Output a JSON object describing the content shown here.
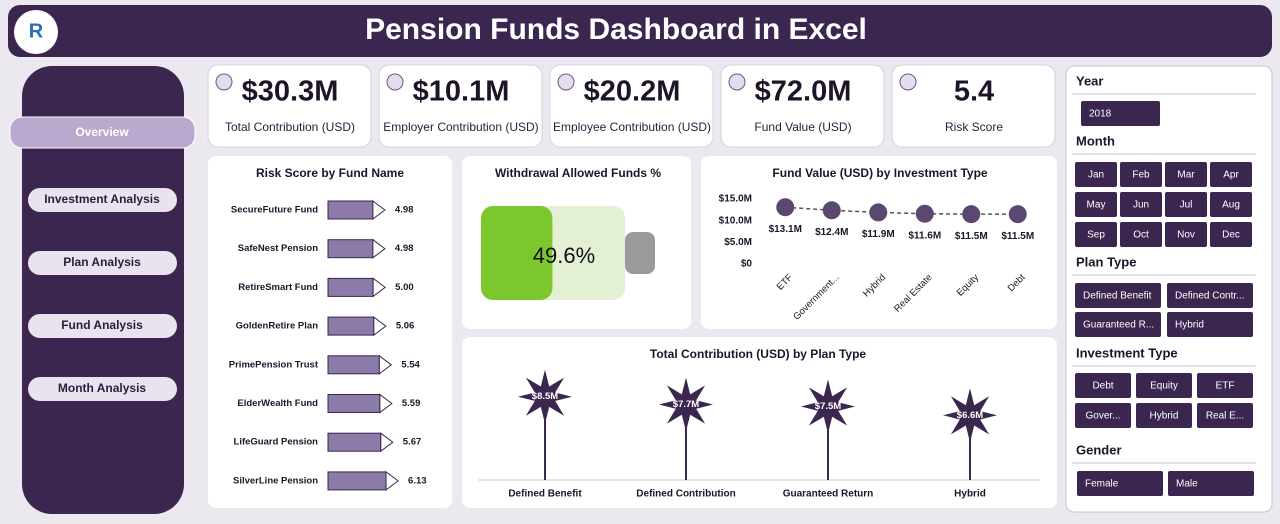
{
  "header": {
    "title": "Pension Funds Dashboard in Excel"
  },
  "nav": [
    "Overview",
    "Investment Analysis",
    "Plan Analysis",
    "Fund Analysis",
    "Month Analysis"
  ],
  "kpis": [
    {
      "value": "$30.3M",
      "label": "Total Contribution (USD)"
    },
    {
      "value": "$10.1M",
      "label": "Employer Contribution (USD)"
    },
    {
      "value": "$20.2M",
      "label": "Employee Contribution (USD)"
    },
    {
      "value": "$72.0M",
      "label": "Fund Value (USD)"
    },
    {
      "value": "5.4",
      "label": "Risk Score"
    }
  ],
  "slicers": [
    {
      "title": "Year",
      "items": [
        "2018"
      ]
    },
    {
      "title": "Month",
      "items": [
        "Jan",
        "Feb",
        "Mar",
        "Apr",
        "May",
        "Jun",
        "Jul",
        "Aug",
        "Sep",
        "Oct",
        "Nov",
        "Dec"
      ]
    },
    {
      "title": "Plan Type",
      "items": [
        "Defined Benefit",
        "Defined Contr...",
        "Guaranteed R...",
        "Hybrid"
      ]
    },
    {
      "title": "Investment Type",
      "items": [
        "Debt",
        "Equity",
        "ETF",
        "Gover...",
        "Hybrid",
        "Real E..."
      ]
    },
    {
      "title": "Gender",
      "items": [
        "Female",
        "Male"
      ]
    }
  ],
  "chart_data": [
    {
      "type": "bar",
      "title": "Risk Score by Fund Name",
      "categories": [
        "SecureFuture Fund",
        "SafeNest Pension",
        "RetireSmart Fund",
        "GoldenRetire Plan",
        "PrimePension Trust",
        "ElderWealth Fund",
        "LifeGuard Pension",
        "SilverLine Pension"
      ],
      "values": [
        4.98,
        4.98,
        5.0,
        5.06,
        5.54,
        5.59,
        5.67,
        6.13
      ],
      "value_labels": [
        "4.98",
        "4.98",
        "5.00",
        "5.06",
        "5.54",
        "5.59",
        "5.67",
        "6.13"
      ],
      "color": "#8c7aa8",
      "xlim": [
        0,
        7
      ]
    },
    {
      "type": "gauge",
      "title": "Withdrawal Allowed Funds %",
      "values": [
        49.6
      ],
      "value_labels": [
        "49.6%"
      ],
      "ylim": [
        0,
        100
      ],
      "color": "#7dc72e"
    },
    {
      "type": "line",
      "title": "Fund Value (USD) by Investment Type",
      "categories": [
        "ETF",
        "Government...",
        "Hybrid",
        "Real Estate",
        "Equity",
        "Debt"
      ],
      "values": [
        13100000,
        12400000,
        11900000,
        11600000,
        11500000,
        11500000
      ],
      "value_labels": [
        "$13.1M",
        "$12.4M",
        "$11.9M",
        "$11.6M",
        "$11.5M",
        "$11.5M"
      ],
      "color": "#5a4870",
      "ylim": [
        0,
        15000000
      ],
      "yticks": [
        {
          "value": 0,
          "label": "$0"
        },
        {
          "value": 5000000,
          "label": "$5.0M"
        },
        {
          "value": 10000000,
          "label": "$10.0M"
        },
        {
          "value": 15000000,
          "label": "$15.0M"
        }
      ]
    },
    {
      "type": "lollipop",
      "title": "Total Contribution (USD) by Plan Type",
      "categories": [
        "Defined Benefit",
        "Defined Contribution",
        "Guaranteed Return",
        "Hybrid"
      ],
      "values": [
        8500000,
        7700000,
        7500000,
        6600000
      ],
      "value_labels": [
        "$8.5M",
        "$7.7M",
        "$7.5M",
        "$6.6M"
      ],
      "color": "#3b2650",
      "ylim": [
        0,
        10000000
      ]
    }
  ]
}
